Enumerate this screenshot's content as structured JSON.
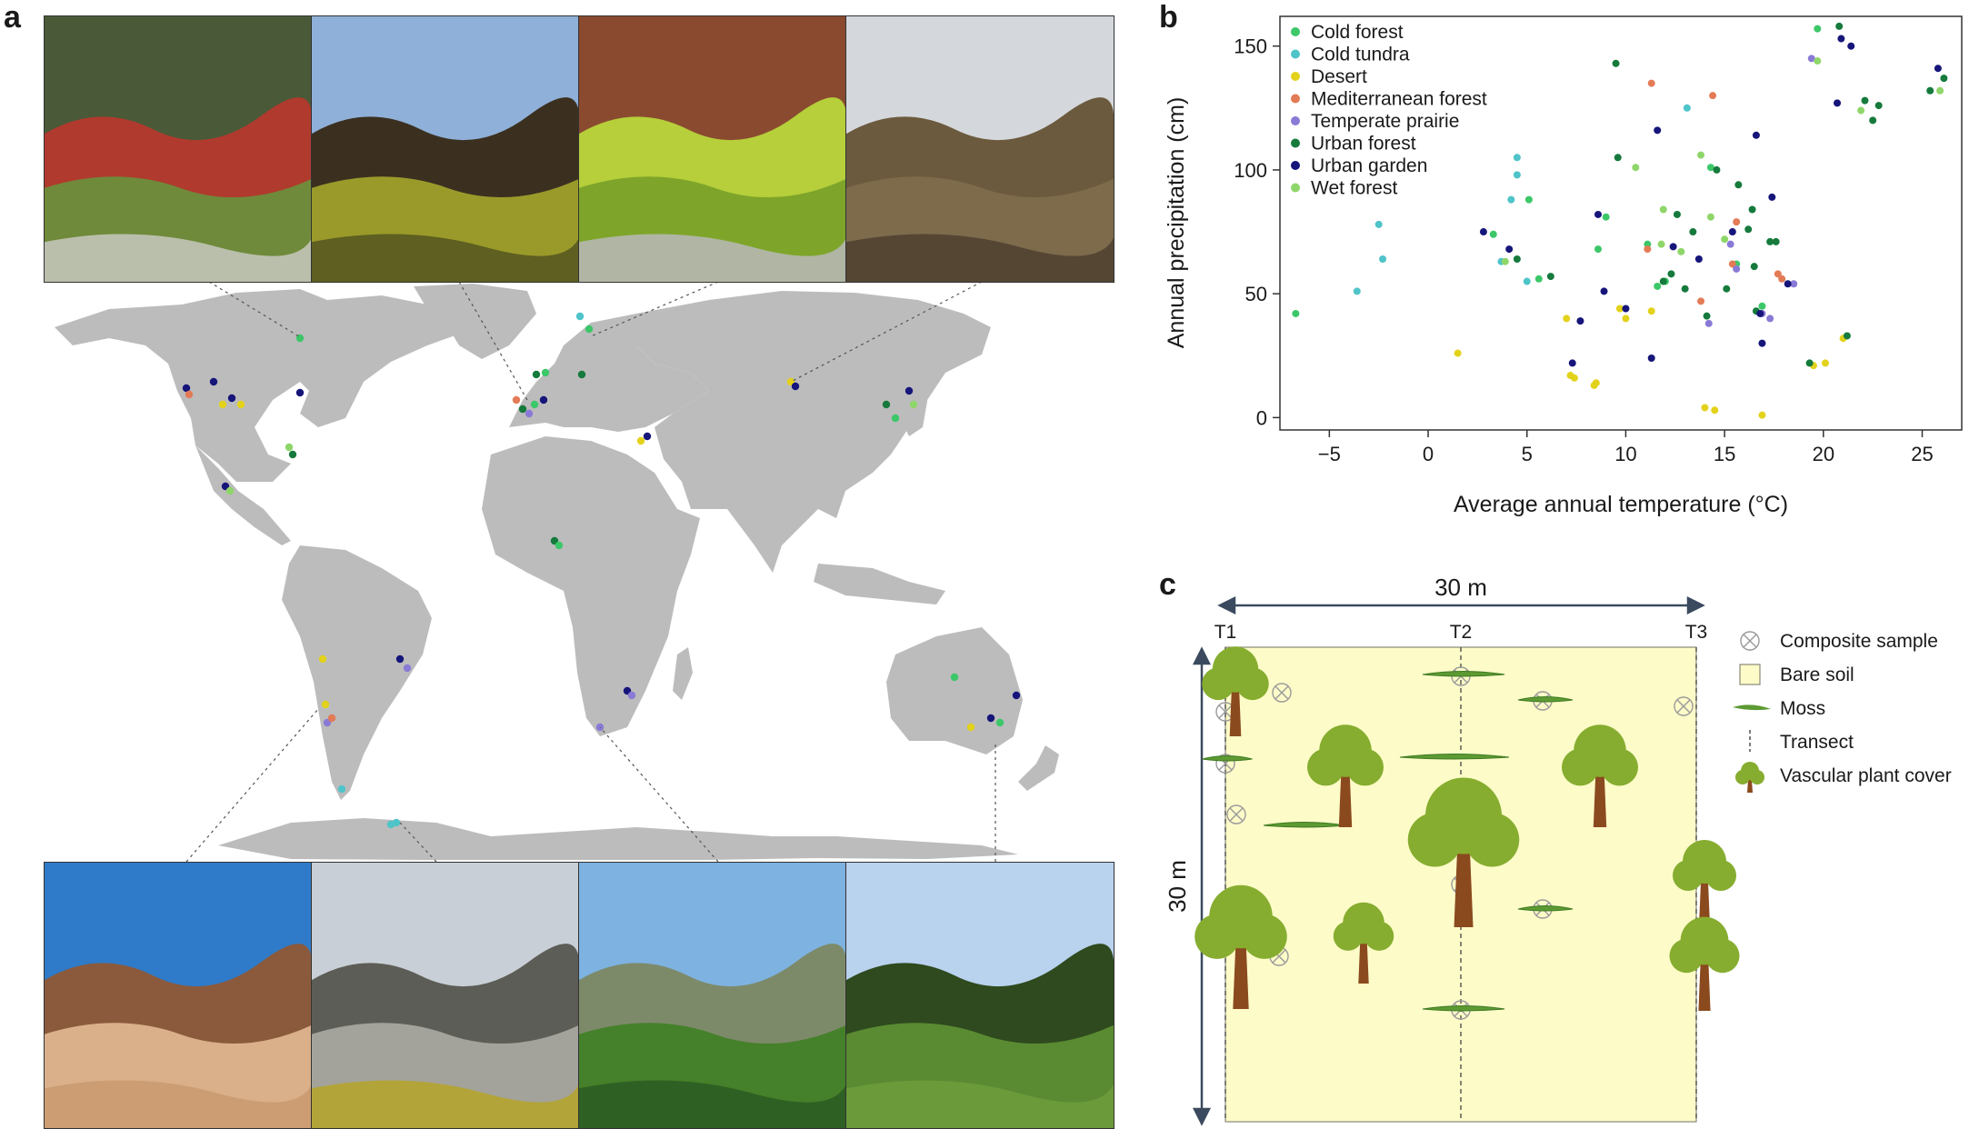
{
  "panels": {
    "a": "a",
    "b": "b",
    "c": "c"
  },
  "photos_top": [
    {
      "name": "cold-forest-photo",
      "palette": [
        "#4a5a38",
        "#b03a2e",
        "#6f8a3a",
        "#c8c8c0"
      ]
    },
    {
      "name": "woodland-shadow-photo",
      "palette": [
        "#8fb0d8",
        "#3b3020",
        "#9a9a2a",
        "#54551f"
      ]
    },
    {
      "name": "moss-carpet-photo",
      "palette": [
        "#8a4a30",
        "#b6cf3a",
        "#7ea52a",
        "#b8b8b8"
      ]
    },
    {
      "name": "shrubland-photo",
      "palette": [
        "#d4d8dc",
        "#6c5a3e",
        "#7d6b4c",
        "#4d4030"
      ]
    }
  ],
  "photos_bottom": [
    {
      "name": "desert-photo",
      "palette": [
        "#2f7bc9",
        "#8b5a3c",
        "#d9b08a",
        "#c99a6e"
      ]
    },
    {
      "name": "tundra-rocks-photo",
      "palette": [
        "#c9cfd6",
        "#5d5d57",
        "#a3a39b",
        "#b6a428"
      ]
    },
    {
      "name": "urban-garden-photo",
      "palette": [
        "#7eb2e0",
        "#7d8a6a",
        "#45802a",
        "#2b5a22"
      ]
    },
    {
      "name": "urban-park-photo",
      "palette": [
        "#b9d2ee",
        "#2e4a1e",
        "#5a8a32",
        "#6f9c3c"
      ]
    }
  ],
  "legend": {
    "items": [
      {
        "label": "Cold forest",
        "color": "#3cc769"
      },
      {
        "label": "Cold tundra",
        "color": "#4fc4c9"
      },
      {
        "label": "Desert",
        "color": "#e3d21b"
      },
      {
        "label": "Mediterranean forest",
        "color": "#e37b56"
      },
      {
        "label": "Temperate prairie",
        "color": "#8a7ad6"
      },
      {
        "label": "Urban forest",
        "color": "#157a3c"
      },
      {
        "label": "Urban garden",
        "color": "#16157a"
      },
      {
        "label": "Wet forest",
        "color": "#8fd66a"
      }
    ]
  },
  "chart_data": {
    "type": "scatter",
    "xlabel": "Average annual temperature (°C)",
    "ylabel": "Annual precipitation (cm)",
    "xlim": [
      -7.5,
      27
    ],
    "ylim": [
      -5,
      162
    ],
    "xticks": [
      -5,
      0,
      5,
      10,
      15,
      20,
      25
    ],
    "xtick_labels": [
      "−5",
      "0",
      "5",
      "10",
      "15",
      "20",
      "25"
    ],
    "yticks": [
      0,
      50,
      100,
      150
    ],
    "legend_position": "top-left",
    "series": [
      {
        "name": "Cold forest",
        "points": [
          [
            -6.7,
            42
          ],
          [
            3.3,
            74
          ],
          [
            5.6,
            56
          ],
          [
            5.1,
            88
          ],
          [
            8.6,
            68
          ],
          [
            14.3,
            101
          ],
          [
            12.0,
            55
          ],
          [
            15.6,
            62
          ],
          [
            11.1,
            70
          ],
          [
            11.6,
            53
          ],
          [
            16.9,
            45
          ],
          [
            19.7,
            157
          ],
          [
            9.0,
            81
          ]
        ]
      },
      {
        "name": "Cold tundra",
        "points": [
          [
            -2.5,
            78
          ],
          [
            -2.3,
            64
          ],
          [
            -3.6,
            51
          ],
          [
            4.5,
            98
          ],
          [
            4.5,
            105
          ],
          [
            4.2,
            88
          ],
          [
            5.0,
            55
          ],
          [
            3.7,
            63
          ],
          [
            13.1,
            125
          ]
        ]
      },
      {
        "name": "Desert",
        "points": [
          [
            1.5,
            26
          ],
          [
            7.4,
            16
          ],
          [
            7.0,
            40
          ],
          [
            8.5,
            14
          ],
          [
            8.4,
            13
          ],
          [
            9.7,
            44
          ],
          [
            10.0,
            40
          ],
          [
            11.3,
            43
          ],
          [
            14.0,
            4
          ],
          [
            14.5,
            3
          ],
          [
            16.9,
            1
          ],
          [
            19.5,
            21
          ],
          [
            20.1,
            22
          ],
          [
            21.0,
            32
          ],
          [
            7.2,
            17
          ]
        ]
      },
      {
        "name": "Mediterranean forest",
        "points": [
          [
            11.3,
            135
          ],
          [
            14.4,
            130
          ],
          [
            13.8,
            47
          ],
          [
            15.4,
            62
          ],
          [
            15.6,
            79
          ],
          [
            17.7,
            58
          ],
          [
            17.9,
            56
          ],
          [
            11.1,
            68
          ]
        ]
      },
      {
        "name": "Temperate prairie",
        "points": [
          [
            15.3,
            70
          ],
          [
            14.2,
            38
          ],
          [
            15.6,
            60
          ],
          [
            16.9,
            42
          ],
          [
            19.4,
            145
          ],
          [
            17.3,
            40
          ],
          [
            18.5,
            54
          ]
        ]
      },
      {
        "name": "Urban forest",
        "points": [
          [
            9.5,
            143
          ],
          [
            9.6,
            105
          ],
          [
            12.6,
            82
          ],
          [
            13.4,
            75
          ],
          [
            14.6,
            100
          ],
          [
            15.7,
            94
          ],
          [
            16.4,
            84
          ],
          [
            15.1,
            52
          ],
          [
            16.5,
            61
          ],
          [
            16.6,
            43
          ],
          [
            17.6,
            71
          ],
          [
            20.8,
            158
          ],
          [
            22.1,
            128
          ],
          [
            22.8,
            126
          ],
          [
            22.5,
            120
          ],
          [
            25.4,
            132
          ],
          [
            26.1,
            137
          ],
          [
            4.5,
            64
          ],
          [
            6.2,
            57
          ],
          [
            12.3,
            58
          ],
          [
            13.0,
            52
          ],
          [
            11.9,
            55
          ],
          [
            16.2,
            76
          ],
          [
            17.3,
            71
          ],
          [
            19.3,
            22
          ],
          [
            14.1,
            41
          ],
          [
            21.2,
            33
          ]
        ]
      },
      {
        "name": "Urban garden",
        "points": [
          [
            2.8,
            75
          ],
          [
            4.1,
            68
          ],
          [
            7.3,
            22
          ],
          [
            7.7,
            39
          ],
          [
            8.6,
            82
          ],
          [
            10.0,
            44
          ],
          [
            11.3,
            24
          ],
          [
            11.6,
            116
          ],
          [
            12.4,
            69
          ],
          [
            15.4,
            75
          ],
          [
            16.6,
            114
          ],
          [
            16.9,
            30
          ],
          [
            18.2,
            54
          ],
          [
            20.7,
            127
          ],
          [
            21.4,
            150
          ],
          [
            20.9,
            153
          ],
          [
            25.8,
            141
          ],
          [
            17.4,
            89
          ],
          [
            13.7,
            64
          ],
          [
            16.8,
            42
          ],
          [
            8.9,
            51
          ]
        ]
      },
      {
        "name": "Wet forest",
        "points": [
          [
            3.9,
            63
          ],
          [
            10.5,
            101
          ],
          [
            11.8,
            70
          ],
          [
            12.8,
            67
          ],
          [
            13.8,
            106
          ],
          [
            14.3,
            81
          ],
          [
            21.9,
            124
          ],
          [
            25.9,
            132
          ],
          [
            19.7,
            144
          ],
          [
            11.9,
            84
          ],
          [
            15.0,
            72
          ]
        ]
      }
    ]
  },
  "diagram": {
    "width_label": "30 m",
    "height_label": "30 m",
    "transects": [
      "T1",
      "T2",
      "T3"
    ],
    "legend": [
      {
        "key": "composite",
        "label": "Composite sample"
      },
      {
        "key": "soil",
        "label": "Bare soil"
      },
      {
        "key": "moss",
        "label": "Moss"
      },
      {
        "key": "transect",
        "label": "Transect"
      },
      {
        "key": "plant",
        "label": "Vascular plant cover"
      }
    ],
    "colors": {
      "soil": "#fdfbc8",
      "soil_border": "#8a8a7a",
      "tree_leaf": "#86ad2f",
      "tree_trunk": "#8b4a1e",
      "moss": "#5d9a33",
      "arrow": "#3b4a5e"
    }
  }
}
